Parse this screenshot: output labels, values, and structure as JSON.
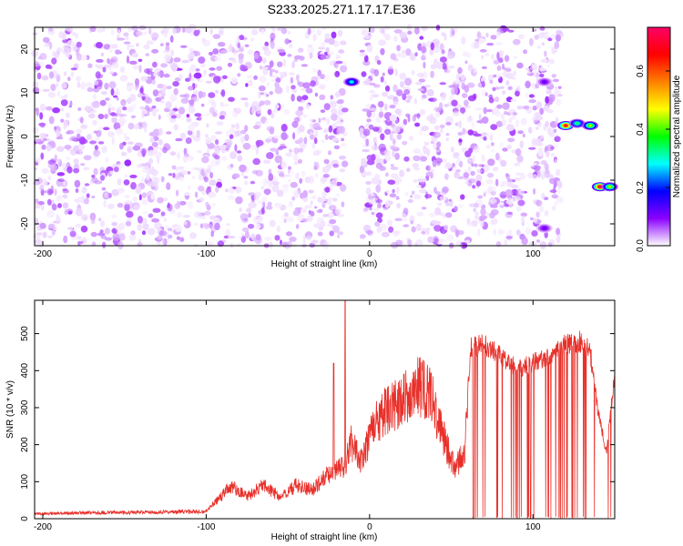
{
  "title": "S233.2025.271.17.17.E36",
  "chart_data": [
    {
      "type": "heatmap",
      "xlabel": "Height of straight line (km)",
      "ylabel": "Frequency (Hz)",
      "xlim": [
        -205,
        150
      ],
      "ylim": [
        -25,
        25
      ],
      "xticks": [
        "-200",
        "-100",
        "0",
        "100"
      ],
      "xtick_values": [
        -200,
        -100,
        0,
        100
      ],
      "yticks": [
        "-20",
        "-10",
        "0",
        "10",
        "20"
      ],
      "ytick_values": [
        -20,
        -10,
        0,
        10,
        20
      ],
      "colorbar": {
        "label": "Normalized spectral amplitude",
        "ticks": [
          "0.0",
          "0.2",
          "0.4",
          "0.6"
        ],
        "tick_values": [
          0.0,
          0.2,
          0.4,
          0.6
        ],
        "range": [
          0,
          0.75
        ],
        "colormap": [
          "#ffffff",
          "#8b00ff",
          "#0000ff",
          "#00ffff",
          "#00ff00",
          "#ffff00",
          "#ff8000",
          "#ff0000",
          "#ff0066"
        ]
      },
      "background_noise_level": 0.05,
      "empty_band_x": [
        -15,
        -5
      ],
      "empty_region_x_start": 117,
      "features": [
        {
          "x": -11,
          "y": 12.5,
          "amplitude": 0.3
        },
        {
          "x": 107,
          "y": 12.5,
          "amplitude": 0.12
        },
        {
          "x": 107,
          "y": -21,
          "amplitude": 0.12
        },
        {
          "x": 120,
          "y": 2.5,
          "amplitude": 0.7
        },
        {
          "x": 127,
          "y": 3,
          "amplitude": 0.35
        },
        {
          "x": 135,
          "y": 2.5,
          "amplitude": 0.45
        },
        {
          "x": 141,
          "y": -11.5,
          "amplitude": 0.75
        },
        {
          "x": 147,
          "y": -11.5,
          "amplitude": 0.45
        }
      ]
    },
    {
      "type": "line",
      "xlabel": "Height of straight line (km)",
      "ylabel": "SNR (10 * v/v)",
      "xlim": [
        -205,
        150
      ],
      "ylim": [
        0,
        590
      ],
      "xticks": [
        "-200",
        "-100",
        "0",
        "100"
      ],
      "xtick_values": [
        -200,
        -100,
        0,
        100
      ],
      "yticks": [
        "0",
        "100",
        "200",
        "300",
        "400",
        "500"
      ],
      "ytick_values": [
        0,
        100,
        200,
        300,
        400,
        500
      ],
      "color": "#e8302a",
      "grid": false,
      "envelope_x": [
        -205,
        -100,
        -95,
        -85,
        -75,
        -65,
        -55,
        -45,
        -35,
        -25,
        -15,
        -12,
        -5,
        0,
        5,
        10,
        20,
        30,
        37,
        42,
        47,
        52,
        58,
        62,
        70,
        80,
        90,
        100,
        110,
        120,
        130,
        135,
        140,
        145,
        150
      ],
      "envelope_y": [
        18,
        25,
        50,
        110,
        75,
        110,
        75,
        110,
        95,
        150,
        175,
        260,
        190,
        270,
        330,
        360,
        390,
        440,
        420,
        330,
        240,
        170,
        220,
        495,
        500,
        470,
        430,
        450,
        470,
        500,
        510,
        480,
        300,
        190,
        420
      ],
      "spikes": [
        {
          "x": -15,
          "y": 590
        },
        {
          "x": -22,
          "y": 420
        }
      ],
      "dropouts_x_range": [
        63,
        150
      ]
    }
  ]
}
